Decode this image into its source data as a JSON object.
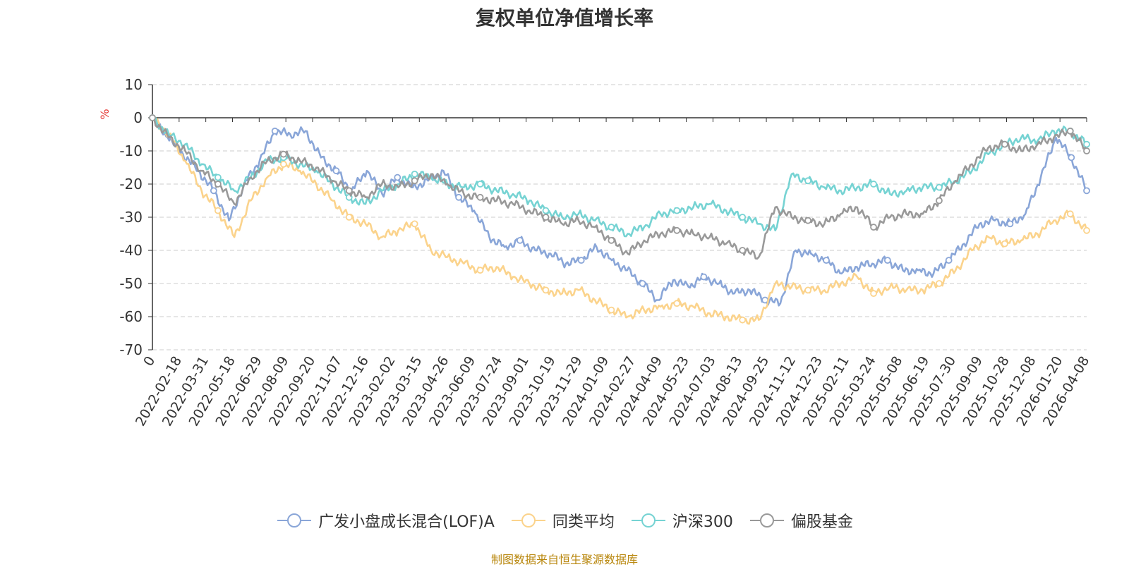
{
  "chart_data": {
    "type": "line",
    "title": "复权单位净值增长率",
    "ylabel": "%",
    "ylim": [
      -70,
      10
    ],
    "yticks": [
      10,
      0,
      -10,
      -20,
      -30,
      -40,
      -50,
      -60,
      -70
    ],
    "x_tick_labels": [
      "0",
      "2022-02-18",
      "2022-03-31",
      "2022-05-18",
      "2022-06-29",
      "2022-08-09",
      "2022-09-20",
      "2022-11-07",
      "2022-12-16",
      "2023-02-02",
      "2023-03-15",
      "2023-04-26",
      "2023-06-09",
      "2023-07-24",
      "2023-09-01",
      "2023-10-19",
      "2023-11-29",
      "2024-01-09",
      "2024-02-27",
      "2024-04-09",
      "2024-05-23",
      "2024-07-03",
      "2024-08-13",
      "2024-09-25",
      "2024-11-12",
      "2024-12-23",
      "2025-02-11",
      "2025-03-24",
      "2025-05-08",
      "2025-06-19",
      "2025-07-30",
      "2025-09-09",
      "2025-10-28",
      "2025-12-08",
      "2026-01-20",
      "2026-04-08"
    ],
    "series": [
      {
        "name": "广发小盘成长混合(LOF)A",
        "color": "#8aa6d8",
        "values": [
          0,
          -6,
          -11,
          -16,
          -22,
          -31,
          -20,
          -13,
          -4,
          -5,
          -4,
          -12,
          -16,
          -22,
          -16,
          -23,
          -18,
          -21,
          -19,
          -16,
          -24,
          -28,
          -36,
          -39,
          -37,
          -40,
          -41,
          -44,
          -43,
          -39,
          -43,
          -46,
          -50,
          -55,
          -49,
          -51,
          -48,
          -50,
          -53,
          -52,
          -55,
          -56,
          -40,
          -41,
          -43,
          -47,
          -45,
          -44,
          -43,
          -46,
          -46,
          -47,
          -43,
          -38,
          -32,
          -31,
          -32,
          -29,
          -18,
          -6,
          -12,
          -22
        ]
      },
      {
        "name": "同类平均",
        "color": "#fbd38c",
        "values": [
          0,
          -5,
          -13,
          -22,
          -28,
          -36,
          -25,
          -18,
          -14,
          -16,
          -20,
          -25,
          -30,
          -32,
          -36,
          -34,
          -32,
          -40,
          -42,
          -44,
          -46,
          -45,
          -48,
          -50,
          -52,
          -53,
          -52,
          -55,
          -58,
          -60,
          -58,
          -57,
          -56,
          -57,
          -59,
          -60,
          -61,
          -61,
          -50,
          -51,
          -52,
          -52,
          -50,
          -48,
          -53,
          -51,
          -52,
          -52,
          -50,
          -46,
          -40,
          -36,
          -38,
          -37,
          -35,
          -31,
          -29,
          -34
        ]
      },
      {
        "name": "沪深300",
        "color": "#76d3d3",
        "values": [
          0,
          -5,
          -8,
          -14,
          -18,
          -22,
          -18,
          -13,
          -12,
          -14,
          -16,
          -20,
          -24,
          -26,
          -22,
          -20,
          -17,
          -18,
          -20,
          -21,
          -20,
          -22,
          -23,
          -25,
          -28,
          -30,
          -29,
          -31,
          -33,
          -35,
          -33,
          -29,
          -28,
          -27,
          -26,
          -28,
          -30,
          -32,
          -34,
          -17,
          -19,
          -21,
          -22,
          -21,
          -20,
          -23,
          -22,
          -21,
          -21,
          -19,
          -16,
          -11,
          -8,
          -6,
          -7,
          -4,
          -4,
          -8
        ]
      },
      {
        "name": "偏股基金",
        "color": "#999999",
        "values": [
          0,
          -6,
          -10,
          -16,
          -20,
          -26,
          -18,
          -13,
          -11,
          -13,
          -15,
          -19,
          -22,
          -24,
          -20,
          -21,
          -19,
          -17,
          -20,
          -23,
          -24,
          -25,
          -26,
          -28,
          -30,
          -32,
          -31,
          -33,
          -37,
          -41,
          -37,
          -35,
          -34,
          -35,
          -36,
          -38,
          -40,
          -42,
          -27,
          -30,
          -31,
          -32,
          -29,
          -27,
          -33,
          -30,
          -29,
          -29,
          -25,
          -19,
          -14,
          -9,
          -8,
          -10,
          -8,
          -6,
          -4,
          -10
        ]
      }
    ]
  },
  "legend": [
    {
      "label": "广发小盘成长混合(LOF)A",
      "color": "#8aa6d8"
    },
    {
      "label": "同类平均",
      "color": "#fbd38c"
    },
    {
      "label": "沪深300",
      "color": "#76d3d3"
    },
    {
      "label": "偏股基金",
      "color": "#999999"
    }
  ],
  "source_note": "制图数据来自恒生聚源数据库"
}
